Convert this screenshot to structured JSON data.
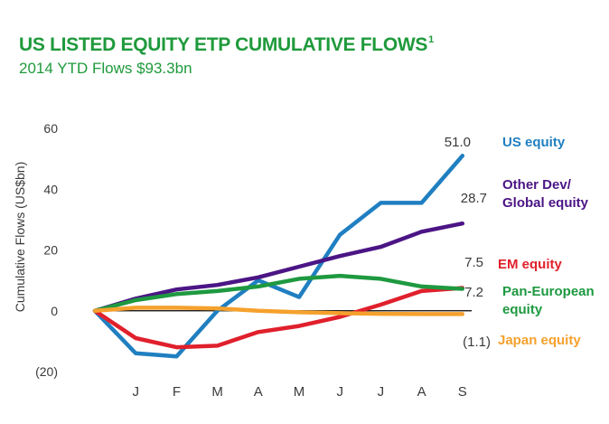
{
  "header": {
    "title": "US LISTED EQUITY ETP CUMULATIVE FLOWS",
    "title_footnote": "1",
    "subtitle": "2014 YTD Flows $93.3bn"
  },
  "chart_data": {
    "type": "line",
    "title": "US LISTED EQUITY ETP CUMULATIVE FLOWS",
    "subtitle": "2014 YTD Flows $93.3bn",
    "xlabel": "",
    "ylabel": "Cumulative Flows (US$bn)",
    "ylim": [
      -20,
      60
    ],
    "y_ticks": [
      60,
      40,
      20,
      0,
      -20
    ],
    "y_tick_labels": [
      "60",
      "40",
      "20",
      "0",
      "(20)"
    ],
    "x": [
      "",
      "J",
      "F",
      "M",
      "A",
      "M",
      "J",
      "J",
      "A",
      "S"
    ],
    "x_tick_labels": [
      "J",
      "F",
      "M",
      "A",
      "M",
      "J",
      "J",
      "A",
      "S"
    ],
    "grid": false,
    "zero_line": true,
    "legend": "right, labels at line ends",
    "series": [
      {
        "name": "US equity",
        "label_lines": [
          "US equity"
        ],
        "end_label": "51.0",
        "color": "#1f7fc1",
        "values": [
          0,
          -14,
          -15,
          0,
          10,
          4.5,
          25,
          35.5,
          35.5,
          51.0
        ]
      },
      {
        "name": "Other Dev/ Global equity",
        "label_lines": [
          "Other Dev/",
          "Global equity"
        ],
        "end_label": "28.7",
        "color": "#4b1585",
        "values": [
          0,
          4,
          7,
          8.5,
          11,
          14.5,
          18,
          21,
          26,
          28.7
        ]
      },
      {
        "name": "EM equity",
        "label_lines": [
          "EM equity"
        ],
        "end_label": "7.5",
        "color": "#e0202c",
        "values": [
          0,
          -9,
          -12,
          -11.5,
          -7,
          -5,
          -2,
          2,
          6.5,
          7.5
        ]
      },
      {
        "name": "Pan-European equity",
        "label_lines": [
          "Pan-European",
          "equity"
        ],
        "end_label": "7.2",
        "color": "#1e9940",
        "values": [
          0,
          3.5,
          5.5,
          6.5,
          8,
          10.5,
          11.5,
          10.5,
          8,
          7.2
        ]
      },
      {
        "name": "Japan equity",
        "label_lines": [
          "Japan equity"
        ],
        "end_label": "(1.1)",
        "color": "#f5a12d",
        "values": [
          0,
          1,
          1,
          0.8,
          0,
          -0.5,
          -0.8,
          -1,
          -1.1,
          -1.1
        ]
      }
    ]
  }
}
